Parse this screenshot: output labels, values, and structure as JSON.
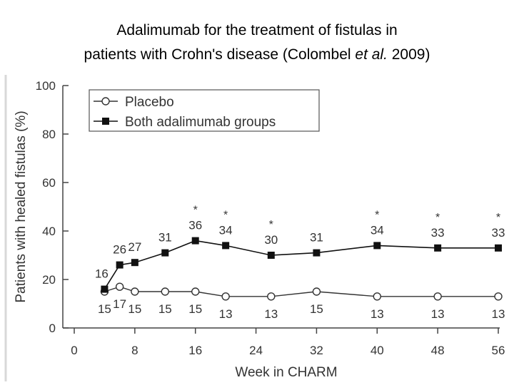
{
  "slide": {
    "title_line1": "Adalimumab for the treatment of fistulas in",
    "title_line2_prefix": "patients with Crohn's disease (Colombel ",
    "title_line2_italic": "et al.",
    "title_line2_suffix": " 2009)"
  },
  "chart_data": {
    "type": "line",
    "xlabel": "Week in CHARM",
    "ylabel": "Patients with healed fistulas (%)",
    "xlim": [
      0,
      56
    ],
    "ylim": [
      0,
      100
    ],
    "x_ticks": [
      0,
      8,
      16,
      24,
      32,
      40,
      48,
      56
    ],
    "y_ticks": [
      0,
      20,
      40,
      60,
      80,
      100
    ],
    "grid": false,
    "legend_position": "top-left",
    "series": [
      {
        "name": "Placebo",
        "marker": "open-circle",
        "color": "#333333",
        "x": [
          4,
          6,
          8,
          12,
          16,
          20,
          26,
          32,
          40,
          48,
          56
        ],
        "values": [
          15,
          17,
          15,
          15,
          15,
          13,
          13,
          15,
          13,
          13,
          13
        ],
        "labels": [
          "15",
          "17",
          "15",
          "15",
          "15",
          "13",
          "13",
          "15",
          "13",
          "13",
          "13"
        ]
      },
      {
        "name": "Both adalimumab groups",
        "marker": "filled-square",
        "color": "#111111",
        "x": [
          4,
          6,
          8,
          12,
          16,
          20,
          26,
          32,
          40,
          48,
          56
        ],
        "values": [
          16,
          26,
          27,
          31,
          36,
          34,
          30,
          31,
          34,
          33,
          33
        ],
        "labels": [
          "16",
          "26",
          "27",
          "31",
          "36",
          "34",
          "30",
          "31",
          "34",
          "33",
          "33"
        ]
      }
    ],
    "significance_markers": {
      "symbol": "*",
      "x": [
        16,
        20,
        26,
        40,
        48,
        56
      ]
    }
  }
}
